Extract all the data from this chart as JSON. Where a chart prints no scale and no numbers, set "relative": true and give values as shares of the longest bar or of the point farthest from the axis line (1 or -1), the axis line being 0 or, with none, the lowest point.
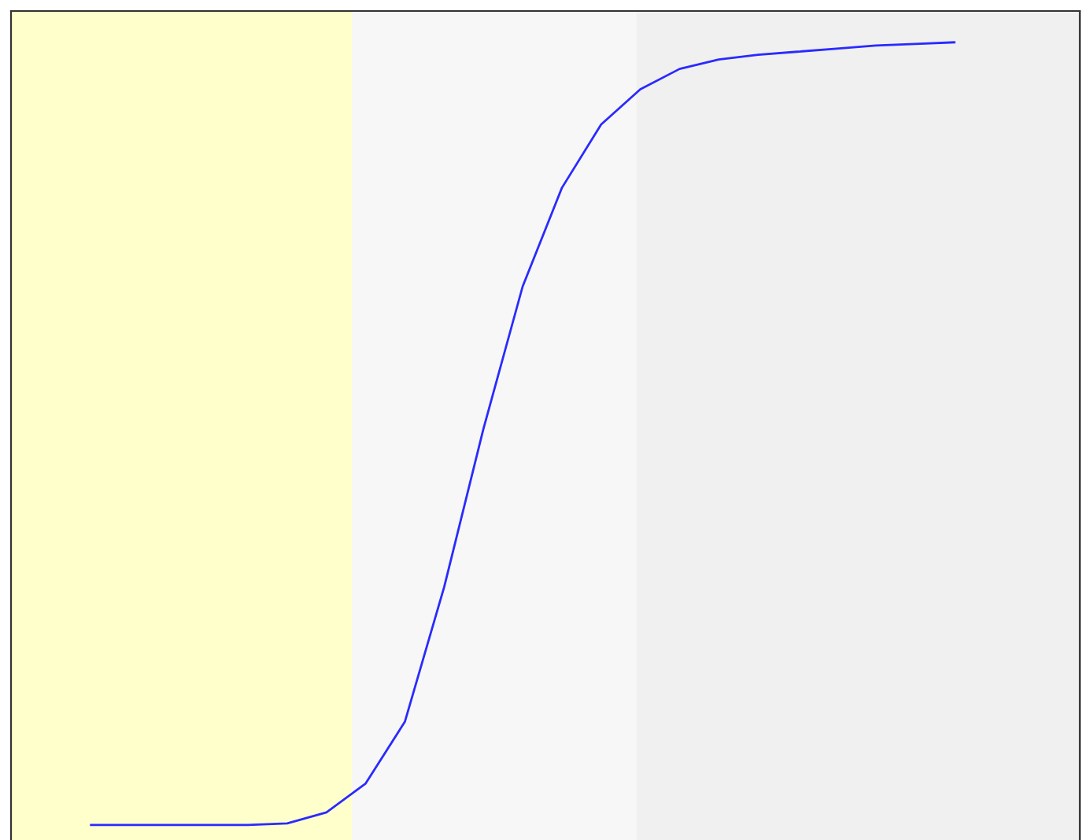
{
  "chart_data": {
    "type": "line",
    "relative": true,
    "legend": false,
    "marker": "none",
    "line_style": "solid",
    "categories": [
      null,
      null,
      null,
      null,
      null,
      null,
      null,
      null,
      null,
      null,
      null,
      null,
      null,
      null,
      null,
      null,
      null,
      null,
      null,
      null,
      null,
      null,
      null
    ],
    "series": [
      {
        "color": "#2a2aff",
        "values": [
          0,
          0,
          0,
          0,
          0,
          0.002,
          0.016,
          0.053,
          0.132,
          0.304,
          0.506,
          0.688,
          0.814,
          0.895,
          0.94,
          0.966,
          0.978,
          0.984,
          0.988,
          0.992,
          0.996,
          0.998,
          1
        ]
      }
    ]
  }
}
